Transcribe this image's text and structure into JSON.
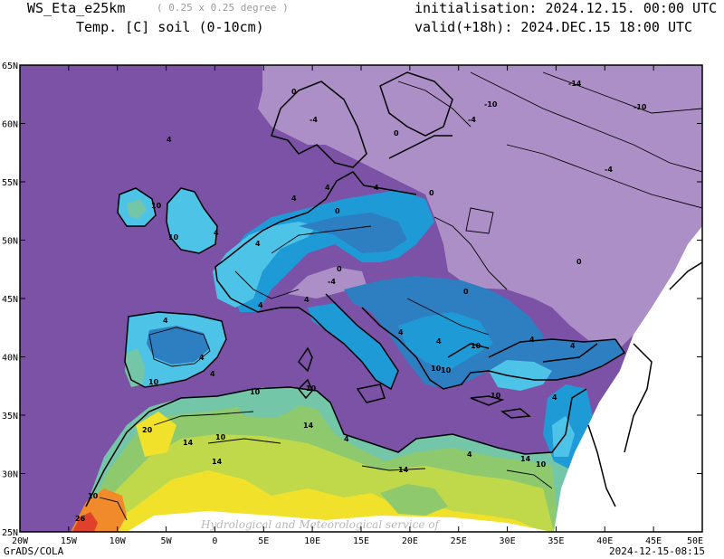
{
  "header": {
    "model": "WS_Eta_e25km",
    "resolution": "( 0.25 x 0.25 degree )",
    "variable": "Temp. [C] soil (0-10cm)",
    "init_label": "initialisation: 2024.12.15. 00:00 UTC",
    "valid_label": "valid(+18h): 2024.DEC.15 18:00 UTC"
  },
  "footer": {
    "software": "GrADS/COLA",
    "timestamp": "2024-12-15-08:15"
  },
  "watermark": "Hydrological and Meteorological service of",
  "map": {
    "projection": "lat-lon",
    "lon_range": [
      "20W",
      "50E"
    ],
    "lat_range": [
      "25N",
      "65N"
    ],
    "lon_ticks": [
      "20W",
      "15W",
      "10W",
      "5W",
      "0",
      "5E",
      "10E",
      "15E",
      "20E",
      "25E",
      "30E",
      "35E",
      "40E",
      "45E",
      "50E"
    ],
    "lat_ticks": [
      "65N",
      "60N",
      "55N",
      "50N",
      "45N",
      "40N",
      "35N",
      "30N",
      "25N"
    ],
    "colors": {
      "lt_-4": "#ad8fc7",
      "-4_to_4": "#7b52a5",
      "4_to_6": "#2e7fc1",
      "6_to_8": "#1e9bd7",
      "8_to_10": "#4ec3e8",
      "10_to_12": "#74c6a8",
      "12_to_14": "#8fc96d",
      "14_to_16": "#bfd94a",
      "16_to_20": "#f2e12a",
      "20_to_26": "#f08a2a",
      "gt_26": "#e0412a"
    },
    "contour_labels": [
      "0",
      "-4",
      "-4",
      "-10",
      "-14",
      "-10",
      "-4",
      "0",
      "4",
      "4",
      "10",
      "10",
      "4",
      "4",
      "0",
      "-4",
      "0",
      "4",
      "4",
      "4",
      "10",
      "0",
      "0",
      "4",
      "4",
      "4",
      "4",
      "4",
      "10",
      "10",
      "10",
      "4",
      "10",
      "14",
      "10",
      "14",
      "4",
      "14",
      "14",
      "10",
      "20",
      "14",
      "10",
      "26",
      "4",
      "0",
      "4",
      "10",
      "4",
      "10",
      "4"
    ]
  }
}
